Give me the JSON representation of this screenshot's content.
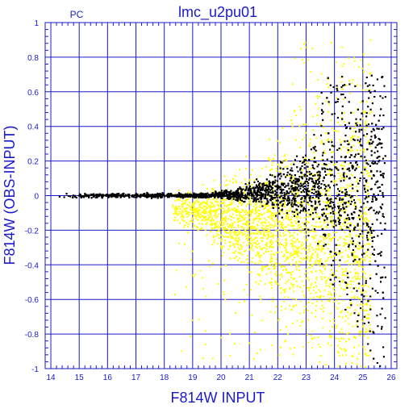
{
  "chart_data": {
    "type": "scatter",
    "title": "lmc_u2pu01",
    "panel_label": "PC",
    "xlabel": "F814W INPUT",
    "ylabel": "F814W (OBS-INPUT)",
    "xlim": [
      13.8,
      26.2
    ],
    "ylim": [
      -1,
      1
    ],
    "xticks": [
      "14",
      "15",
      "16",
      "17",
      "18",
      "19",
      "20",
      "21",
      "22",
      "23",
      "24",
      "25",
      "26"
    ],
    "yticks": [
      "1",
      "0.8",
      "0.6",
      "0.4",
      "0.2",
      "0",
      "-0.2",
      "-0.4",
      "-0.6",
      "-0.8",
      "-1"
    ],
    "grid": true,
    "colors": {
      "axes": "#1a1acc",
      "black_series": "#000000",
      "yellow_series": "#ffff00"
    },
    "series": [
      {
        "color": "black",
        "description_points": [
          [
            14.2,
            0.01
          ],
          [
            14.5,
            -0.01
          ],
          [
            15.0,
            0.0
          ],
          [
            15.5,
            0.01
          ],
          [
            16.0,
            -0.01
          ],
          [
            16.5,
            0.0
          ],
          [
            17.0,
            0.0
          ],
          [
            17.5,
            0.01
          ],
          [
            18.0,
            0.0
          ],
          [
            18.5,
            0.0
          ],
          [
            19.0,
            0.0
          ],
          [
            19.5,
            -0.01
          ],
          [
            20.0,
            0.01
          ],
          [
            20.5,
            0.02
          ],
          [
            21.0,
            0.03
          ],
          [
            21.5,
            0.05
          ],
          [
            22.0,
            0.06
          ],
          [
            22.5,
            0.08
          ],
          [
            23.0,
            0.1
          ],
          [
            23.5,
            0.12
          ],
          [
            24.0,
            0.15
          ],
          [
            24.2,
            0.3
          ],
          [
            24.5,
            -0.3
          ],
          [
            24.8,
            -0.5
          ],
          [
            25.0,
            -0.7
          ],
          [
            25.3,
            -0.9
          ],
          [
            25.5,
            -0.95
          ]
        ]
      },
      {
        "color": "yellow",
        "description_points": [
          [
            18.5,
            -0.05
          ],
          [
            19.0,
            -0.08
          ],
          [
            19.5,
            -0.12
          ],
          [
            20.0,
            -0.15
          ],
          [
            20.5,
            -0.18
          ],
          [
            21.0,
            -0.22
          ],
          [
            21.5,
            -0.25
          ],
          [
            22.0,
            -0.3
          ],
          [
            22.5,
            -0.35
          ],
          [
            23.0,
            -0.4
          ],
          [
            23.5,
            -0.2
          ],
          [
            24.0,
            0.1
          ],
          [
            23.0,
            0.3
          ],
          [
            22.5,
            0.85
          ],
          [
            20.0,
            -0.7
          ],
          [
            21.5,
            -0.9
          ],
          [
            24.5,
            -0.5
          ]
        ]
      }
    ]
  }
}
